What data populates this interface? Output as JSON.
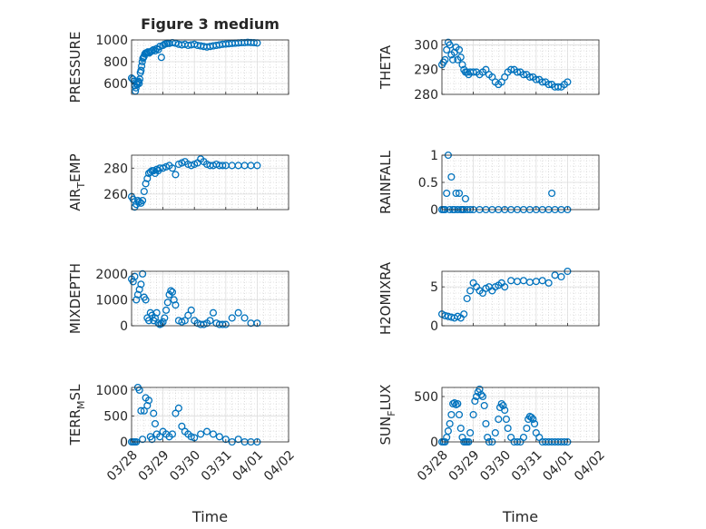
{
  "figure_title": "Figure 3 medium",
  "colors": {
    "marker": "#0072BD",
    "axis": "#262626",
    "grid": "#c8c8c8",
    "background": "#ffffff"
  },
  "chart_data": [
    {
      "type": "scatter",
      "ylabel": "PRESSURE",
      "ylim": [
        500,
        1000
      ],
      "yticks": [
        600,
        800,
        1000
      ],
      "xlim": [
        0,
        5
      ],
      "xticks": [],
      "grid": true,
      "title": "Figure 3 medium",
      "x": [
        0.0,
        0.04,
        0.08,
        0.1,
        0.12,
        0.14,
        0.16,
        0.18,
        0.2,
        0.22,
        0.24,
        0.26,
        0.28,
        0.3,
        0.32,
        0.34,
        0.36,
        0.38,
        0.4,
        0.42,
        0.45,
        0.48,
        0.52,
        0.56,
        0.6,
        0.65,
        0.7,
        0.75,
        0.8,
        0.85,
        0.9,
        0.95,
        1.0,
        1.05,
        1.1,
        1.15,
        1.2,
        1.3,
        1.4,
        1.5,
        1.6,
        1.7,
        1.8,
        1.9,
        2.0,
        2.1,
        2.2,
        2.3,
        2.4,
        2.5,
        2.6,
        2.7,
        2.8,
        2.9,
        3.0,
        3.1,
        3.2,
        3.3,
        3.4,
        3.5,
        3.6,
        3.7,
        3.8,
        3.9,
        4.0
      ],
      "y": [
        650,
        640,
        620,
        580,
        530,
        560,
        600,
        590,
        610,
        620,
        600,
        640,
        700,
        720,
        760,
        800,
        830,
        840,
        850,
        870,
        880,
        880,
        890,
        880,
        890,
        900,
        910,
        900,
        920,
        910,
        940,
        840,
        950,
        960,
        965,
        970,
        968,
        975,
        970,
        960,
        955,
        960,
        950,
        955,
        960,
        950,
        945,
        940,
        935,
        940,
        945,
        950,
        955,
        960,
        962,
        965,
        968,
        970,
        972,
        975,
        975,
        978,
        976,
        975,
        972
      ]
    },
    {
      "type": "scatter",
      "ylabel": "THETA",
      "ylim": [
        280,
        302
      ],
      "yticks": [
        280,
        290,
        300
      ],
      "xlim": [
        0,
        5
      ],
      "xticks": [],
      "grid": true,
      "x": [
        0.0,
        0.05,
        0.1,
        0.15,
        0.2,
        0.25,
        0.3,
        0.35,
        0.4,
        0.45,
        0.5,
        0.55,
        0.6,
        0.65,
        0.7,
        0.75,
        0.8,
        0.85,
        0.9,
        1.0,
        1.1,
        1.2,
        1.3,
        1.4,
        1.5,
        1.6,
        1.7,
        1.8,
        1.9,
        2.0,
        2.1,
        2.2,
        2.3,
        2.4,
        2.5,
        2.6,
        2.7,
        2.8,
        2.9,
        3.0,
        3.1,
        3.2,
        3.3,
        3.4,
        3.5,
        3.6,
        3.7,
        3.8,
        3.9,
        4.0
      ],
      "y": [
        292,
        293,
        294,
        298,
        301,
        300,
        296,
        294,
        297,
        299,
        294,
        298,
        295,
        292,
        290,
        289,
        289,
        288,
        289,
        289,
        289,
        288,
        289,
        290,
        288,
        287,
        285,
        284,
        285,
        287,
        289,
        290,
        290,
        289,
        289,
        288,
        288,
        287,
        287,
        286,
        286,
        285,
        285,
        284,
        284,
        283,
        283,
        283,
        284,
        285
      ]
    },
    {
      "type": "scatter",
      "ylabel": "AIR_TEMP",
      "ylim": [
        248,
        290
      ],
      "yticks": [
        260,
        280
      ],
      "xlim": [
        0,
        5
      ],
      "xticks": [],
      "grid": true,
      "x": [
        0.0,
        0.05,
        0.1,
        0.15,
        0.2,
        0.25,
        0.3,
        0.35,
        0.4,
        0.45,
        0.5,
        0.55,
        0.6,
        0.65,
        0.7,
        0.75,
        0.8,
        0.85,
        0.9,
        1.0,
        1.1,
        1.2,
        1.3,
        1.4,
        1.5,
        1.6,
        1.7,
        1.8,
        1.9,
        2.0,
        2.1,
        2.2,
        2.3,
        2.4,
        2.5,
        2.6,
        2.7,
        2.8,
        2.9,
        3.0,
        3.2,
        3.4,
        3.6,
        3.8,
        4.0
      ],
      "y": [
        258,
        256,
        250,
        252,
        255,
        254,
        253,
        255,
        262,
        268,
        272,
        276,
        277,
        278,
        278,
        276,
        279,
        278,
        280,
        280,
        281,
        282,
        280,
        275,
        283,
        284,
        285,
        283,
        282,
        283,
        284,
        287,
        285,
        283,
        282,
        282,
        283,
        282,
        282,
        282,
        282,
        282,
        282,
        282,
        282
      ]
    },
    {
      "type": "scatter",
      "ylabel": "RAINFALL",
      "ylim": [
        0,
        1
      ],
      "yticks": [
        0,
        0.5,
        1
      ],
      "xlim": [
        0,
        5
      ],
      "xticks": [],
      "grid": true,
      "x": [
        0.0,
        0.05,
        0.1,
        0.15,
        0.2,
        0.25,
        0.3,
        0.35,
        0.4,
        0.45,
        0.5,
        0.55,
        0.6,
        0.65,
        0.7,
        0.75,
        0.8,
        0.9,
        1.0,
        1.2,
        1.4,
        1.6,
        1.8,
        2.0,
        2.2,
        2.4,
        2.6,
        2.8,
        3.0,
        3.2,
        3.4,
        3.5,
        3.6,
        3.8,
        4.0
      ],
      "y": [
        0,
        0,
        0,
        0.3,
        1.0,
        0,
        0.6,
        0,
        0,
        0.3,
        0,
        0.3,
        0,
        0,
        0,
        0.2,
        0,
        0,
        0,
        0,
        0,
        0,
        0,
        0,
        0,
        0,
        0,
        0,
        0,
        0,
        0,
        0.3,
        0,
        0,
        0
      ]
    },
    {
      "type": "scatter",
      "ylabel": "MIXDEPTH",
      "ylim": [
        0,
        2100
      ],
      "yticks": [
        0,
        1000,
        2000
      ],
      "xlim": [
        0,
        5
      ],
      "xticks": [],
      "grid": true,
      "x": [
        0.0,
        0.05,
        0.1,
        0.15,
        0.2,
        0.25,
        0.3,
        0.35,
        0.4,
        0.45,
        0.5,
        0.55,
        0.6,
        0.65,
        0.7,
        0.75,
        0.8,
        0.85,
        0.9,
        0.95,
        1.0,
        1.05,
        1.1,
        1.15,
        1.2,
        1.25,
        1.3,
        1.35,
        1.4,
        1.5,
        1.6,
        1.7,
        1.8,
        1.9,
        2.0,
        2.1,
        2.2,
        2.3,
        2.4,
        2.5,
        2.6,
        2.7,
        2.8,
        2.9,
        3.0,
        3.2,
        3.4,
        3.6,
        3.8,
        4.0
      ],
      "y": [
        1800,
        1700,
        1900,
        1000,
        1200,
        1400,
        1600,
        2000,
        1100,
        1000,
        300,
        200,
        500,
        400,
        200,
        300,
        500,
        100,
        50,
        80,
        150,
        300,
        600,
        900,
        1200,
        1350,
        1300,
        1000,
        800,
        200,
        150,
        200,
        400,
        600,
        200,
        100,
        50,
        50,
        100,
        200,
        500,
        100,
        50,
        50,
        50,
        300,
        500,
        300,
        100,
        100
      ]
    },
    {
      "type": "scatter",
      "ylabel": "H2OMIXRA",
      "ylim": [
        0,
        7
      ],
      "yticks": [
        0,
        5
      ],
      "xlim": [
        0,
        5
      ],
      "xticks": [],
      "grid": true,
      "x": [
        0.0,
        0.1,
        0.2,
        0.3,
        0.4,
        0.5,
        0.6,
        0.7,
        0.8,
        0.9,
        1.0,
        1.1,
        1.2,
        1.3,
        1.4,
        1.5,
        1.6,
        1.7,
        1.8,
        1.9,
        2.0,
        2.2,
        2.4,
        2.6,
        2.8,
        3.0,
        3.2,
        3.4,
        3.6,
        3.8,
        4.0
      ],
      "y": [
        1.5,
        1.3,
        1.2,
        1.1,
        1.0,
        1.2,
        1.0,
        1.5,
        3.5,
        4.5,
        5.5,
        5.0,
        4.5,
        4.2,
        4.8,
        5.0,
        4.5,
        5.0,
        5.2,
        5.5,
        5.0,
        5.8,
        5.7,
        5.8,
        5.6,
        5.7,
        5.8,
        5.5,
        6.5,
        6.3,
        7.0
      ]
    },
    {
      "type": "scatter",
      "ylabel": "TERR_MSL",
      "ylim": [
        0,
        1050
      ],
      "yticks": [
        0,
        500,
        1000
      ],
      "xlim": [
        0,
        5
      ],
      "xticks": [
        "03/28",
        "03/29",
        "03/30",
        "03/31",
        "04/01",
        "04/02"
      ],
      "xlabel": "Time",
      "grid": true,
      "x": [
        0.0,
        0.05,
        0.1,
        0.15,
        0.2,
        0.25,
        0.3,
        0.35,
        0.4,
        0.45,
        0.5,
        0.55,
        0.6,
        0.65,
        0.7,
        0.75,
        0.8,
        0.9,
        1.0,
        1.1,
        1.2,
        1.3,
        1.4,
        1.5,
        1.6,
        1.7,
        1.8,
        1.9,
        2.0,
        2.2,
        2.4,
        2.6,
        2.8,
        3.0,
        3.2,
        3.4,
        3.6,
        3.8,
        4.0
      ],
      "y": [
        0,
        0,
        0,
        0,
        1050,
        1000,
        600,
        50,
        600,
        850,
        700,
        800,
        100,
        50,
        550,
        350,
        150,
        100,
        200,
        150,
        100,
        150,
        550,
        650,
        300,
        200,
        150,
        100,
        80,
        150,
        200,
        150,
        100,
        50,
        0,
        50,
        0,
        0,
        0
      ]
    },
    {
      "type": "scatter",
      "ylabel": "SUN_FLUX",
      "ylim": [
        0,
        600
      ],
      "yticks": [
        0,
        500
      ],
      "xlim": [
        0,
        5
      ],
      "xticks": [
        "03/28",
        "03/29",
        "03/30",
        "03/31",
        "04/01",
        "04/02"
      ],
      "xlabel": "Time",
      "grid": true,
      "x": [
        0.0,
        0.05,
        0.1,
        0.15,
        0.2,
        0.25,
        0.3,
        0.35,
        0.4,
        0.45,
        0.5,
        0.55,
        0.6,
        0.65,
        0.7,
        0.75,
        0.8,
        0.85,
        0.9,
        1.0,
        1.05,
        1.1,
        1.15,
        1.2,
        1.25,
        1.3,
        1.35,
        1.4,
        1.45,
        1.5,
        1.6,
        1.7,
        1.8,
        1.85,
        1.9,
        1.95,
        2.0,
        2.05,
        2.1,
        2.2,
        2.3,
        2.4,
        2.5,
        2.6,
        2.7,
        2.75,
        2.8,
        2.85,
        2.9,
        2.95,
        3.0,
        3.1,
        3.2,
        3.3,
        3.4,
        3.5,
        3.6,
        3.7,
        3.8,
        3.9,
        4.0
      ],
      "y": [
        0,
        0,
        0,
        50,
        120,
        200,
        300,
        420,
        430,
        410,
        420,
        300,
        150,
        50,
        0,
        0,
        0,
        0,
        100,
        300,
        450,
        500,
        550,
        580,
        520,
        500,
        400,
        200,
        50,
        0,
        0,
        100,
        250,
        380,
        420,
        400,
        350,
        250,
        150,
        50,
        0,
        0,
        0,
        50,
        150,
        250,
        280,
        270,
        250,
        200,
        100,
        50,
        0,
        0,
        0,
        0,
        0,
        0,
        0,
        0,
        0
      ]
    }
  ]
}
